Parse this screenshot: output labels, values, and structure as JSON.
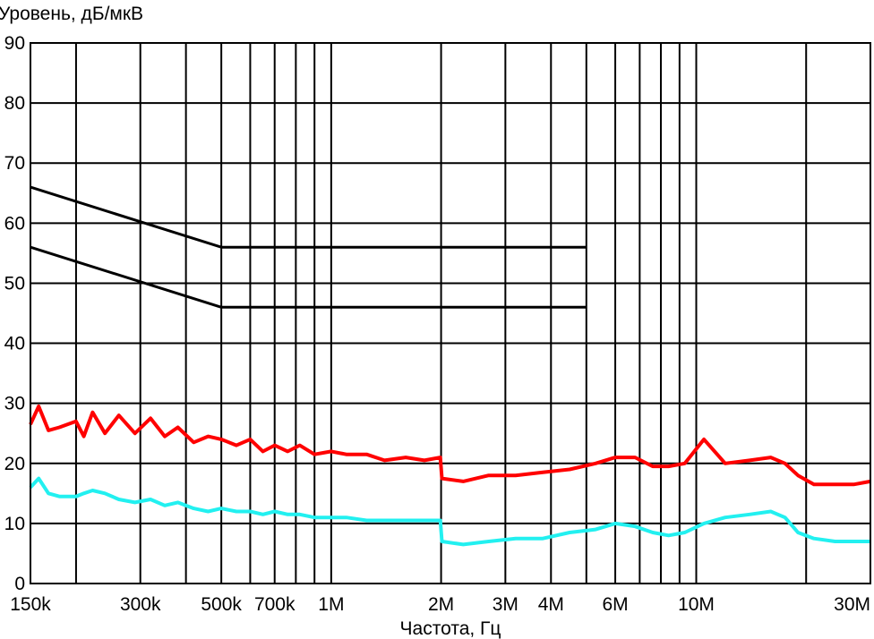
{
  "chart_data": {
    "type": "line",
    "title": "",
    "ylabel": "Уровень, дБ/мкВ",
    "xlabel": "Частота, Гц",
    "xscale": "log",
    "xlim": [
      150000,
      30000000
    ],
    "ylim": [
      0,
      90
    ],
    "grid": true,
    "legend": "none",
    "y_ticks": [
      {
        "value": 0,
        "label": "0"
      },
      {
        "value": 10,
        "label": "10"
      },
      {
        "value": 20,
        "label": "20"
      },
      {
        "value": 30,
        "label": "30"
      },
      {
        "value": 40,
        "label": "40"
      },
      {
        "value": 50,
        "label": "50"
      },
      {
        "value": 60,
        "label": "60"
      },
      {
        "value": 70,
        "label": "70"
      },
      {
        "value": 80,
        "label": "80"
      },
      {
        "value": 90,
        "label": "90"
      }
    ],
    "x_ticks": [
      {
        "value": 150000,
        "label": "150k"
      },
      {
        "value": 300000,
        "label": "300k"
      },
      {
        "value": 500000,
        "label": "500k"
      },
      {
        "value": 700000,
        "label": "700k"
      },
      {
        "value": 1000000,
        "label": "1M"
      },
      {
        "value": 2000000,
        "label": "2M"
      },
      {
        "value": 3000000,
        "label": "3M"
      },
      {
        "value": 4000000,
        "label": "4M"
      },
      {
        "value": 6000000,
        "label": "6M"
      },
      {
        "value": 10000000,
        "label": "10M"
      },
      {
        "value": 30000000,
        "label": "30M"
      }
    ],
    "x_gridlines": [
      200000,
      300000,
      400000,
      500000,
      600000,
      700000,
      800000,
      900000,
      1000000,
      2000000,
      3000000,
      4000000,
      5000000,
      6000000,
      7000000,
      8000000,
      9000000,
      10000000,
      20000000
    ],
    "series": [
      {
        "color": "#000000",
        "x": [
          150000,
          500000,
          5000000
        ],
        "y": [
          66,
          56,
          56
        ]
      },
      {
        "color": "#000000",
        "x": [
          150000,
          500000,
          5000000
        ],
        "y": [
          56,
          46,
          46
        ]
      },
      {
        "color": "#ff0000",
        "x": [
          150000,
          158000,
          168000,
          180000,
          200000,
          210000,
          222000,
          240000,
          262000,
          290000,
          320000,
          350000,
          380000,
          420000,
          460000,
          500000,
          550000,
          600000,
          650000,
          700000,
          760000,
          820000,
          900000,
          1000000,
          1100000,
          1250000,
          1400000,
          1600000,
          1800000,
          1990000,
          2010000,
          2300000,
          2700000,
          3200000,
          3800000,
          4500000,
          5300000,
          6000000,
          6800000,
          7600000,
          8400000,
          9300000,
          10500000,
          12000000,
          14000000,
          16000000,
          17500000,
          19000000,
          21000000,
          24000000,
          27000000,
          30000000
        ],
        "y": [
          26.5,
          29.5,
          25.5,
          26,
          27,
          24.5,
          28.5,
          25,
          28,
          25,
          27.5,
          24.5,
          26,
          23.5,
          24.5,
          24,
          23,
          24,
          22,
          23,
          22,
          23,
          21.5,
          22,
          21.5,
          21.5,
          20.5,
          21,
          20.5,
          21,
          17.5,
          17,
          18,
          18,
          18.5,
          19,
          20,
          21,
          21,
          19.5,
          19.5,
          20,
          24,
          20,
          20.5,
          21,
          20,
          18,
          16.5,
          16.5,
          16.5,
          17
        ]
      },
      {
        "color": "#22f0f0",
        "x": [
          150000,
          158000,
          168000,
          180000,
          200000,
          210000,
          222000,
          240000,
          262000,
          290000,
          320000,
          350000,
          380000,
          420000,
          460000,
          500000,
          550000,
          600000,
          650000,
          700000,
          760000,
          820000,
          900000,
          1000000,
          1100000,
          1250000,
          1400000,
          1600000,
          1800000,
          1990000,
          2010000,
          2300000,
          2700000,
          3200000,
          3800000,
          4500000,
          5300000,
          6000000,
          6800000,
          7600000,
          8400000,
          9300000,
          10500000,
          12000000,
          14000000,
          16000000,
          17500000,
          19000000,
          21000000,
          24000000,
          27000000,
          30000000
        ],
        "y": [
          16,
          17.5,
          15,
          14.5,
          14.5,
          15,
          15.5,
          15,
          14,
          13.5,
          14,
          13,
          13.5,
          12.5,
          12,
          12.5,
          12,
          12,
          11.5,
          12,
          11.5,
          11.5,
          11,
          11,
          11,
          10.5,
          10.5,
          10.5,
          10.5,
          10.5,
          7,
          6.5,
          7,
          7.5,
          7.5,
          8.5,
          9,
          10,
          9.5,
          8.5,
          8,
          8.5,
          10,
          11,
          11.5,
          12,
          11,
          8.5,
          7.5,
          7,
          7,
          7
        ]
      }
    ]
  }
}
